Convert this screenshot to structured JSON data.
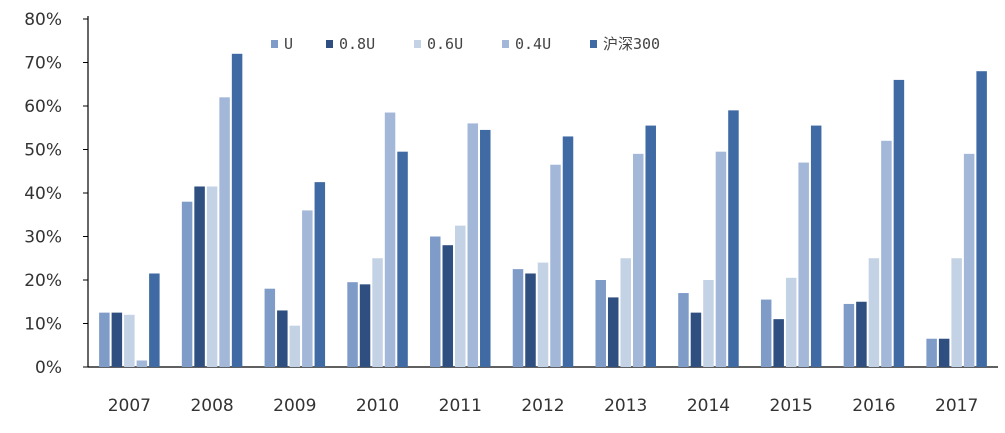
{
  "chart_data": {
    "type": "bar",
    "title": "",
    "xlabel": "",
    "ylabel": "",
    "ylim": [
      0,
      0.8
    ],
    "yticks": [
      "0%",
      "10%",
      "20%",
      "30%",
      "40%",
      "50%",
      "60%",
      "70%",
      "80%"
    ],
    "grid": false,
    "legend_position": "top-center",
    "categories": [
      "2007",
      "2008",
      "2009",
      "2010",
      "2011",
      "2012",
      "2013",
      "2014",
      "2015",
      "2016",
      "2017"
    ],
    "series": [
      {
        "name": "U",
        "color": "#7f9cc9",
        "values": [
          0.125,
          0.38,
          0.18,
          0.195,
          0.3,
          0.225,
          0.2,
          0.17,
          0.155,
          0.145,
          0.065
        ]
      },
      {
        "name": "0.8U",
        "color": "#2e4f7f",
        "values": [
          0.125,
          0.415,
          0.13,
          0.19,
          0.28,
          0.215,
          0.16,
          0.125,
          0.11,
          0.15,
          0.065
        ]
      },
      {
        "name": "0.6U",
        "color": "#c4d2e6",
        "values": [
          0.12,
          0.415,
          0.095,
          0.25,
          0.325,
          0.24,
          0.25,
          0.2,
          0.205,
          0.25,
          0.25
        ]
      },
      {
        "name": "0.4U",
        "color": "#a3b8d9",
        "values": [
          0.015,
          0.62,
          0.36,
          0.585,
          0.56,
          0.465,
          0.49,
          0.495,
          0.47,
          0.52,
          0.49
        ]
      },
      {
        "name": "沪深300",
        "color": "#3f6aa3",
        "values": [
          0.215,
          0.72,
          0.425,
          0.495,
          0.545,
          0.53,
          0.555,
          0.59,
          0.555,
          0.66,
          0.68
        ]
      }
    ]
  }
}
